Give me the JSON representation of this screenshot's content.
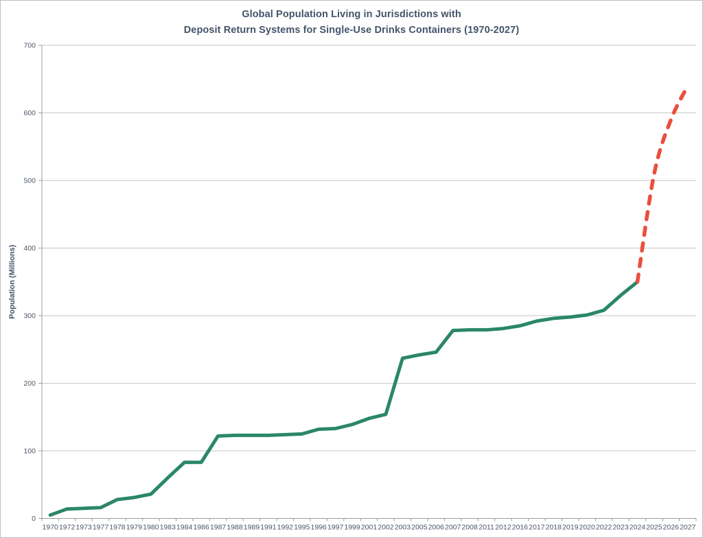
{
  "header": {
    "title_line1": "Global Population Living in Jurisdictions with",
    "title_line2": "Deposit Return Systems for Single-Use Drinks Containers (1970-2027)"
  },
  "colors": {
    "title": "#44546A",
    "axis_line": "#9B9B9B",
    "gridline": "#C6C6C6",
    "tick_label": "#4A5568",
    "axis_title": "#44546A",
    "series_actual": "#2A8767",
    "series_projected": "#EA4F3C",
    "frame_border": "#B9C0C9"
  },
  "chart_data": {
    "type": "line",
    "title": "Global Population Living in Jurisdictions with Deposit Return Systems for Single-Use Drinks Containers (1970-2027)",
    "xlabel": "",
    "ylabel": "Population (Millions)",
    "ylim": [
      0,
      700
    ],
    "ytick_step": 100,
    "grid": true,
    "legend": "none",
    "categories": [
      "1970",
      "1972",
      "1973",
      "1977",
      "1978",
      "1979",
      "1980",
      "1983",
      "1984",
      "1986",
      "1987",
      "1988",
      "1989",
      "1991",
      "1992",
      "1995",
      "1996",
      "1997",
      "1999",
      "2001",
      "2002",
      "2003",
      "2005",
      "2006",
      "2007",
      "2008",
      "2011",
      "2012",
      "2016",
      "2017",
      "2018",
      "2019",
      "2020",
      "2022",
      "2023",
      "2024",
      "2025",
      "2026",
      "2027"
    ],
    "series": [
      {
        "name": "population-covered-actual",
        "style": "solid",
        "smooth": false,
        "color": "#2A8767",
        "stroke_width": 5,
        "x": [
          "1970",
          "1972",
          "1973",
          "1977",
          "1978",
          "1979",
          "1980",
          "1983",
          "1984",
          "1986",
          "1987",
          "1988",
          "1989",
          "1991",
          "1992",
          "1995",
          "1996",
          "1997",
          "1999",
          "2001",
          "2002",
          "2003",
          "2005",
          "2006",
          "2007",
          "2008",
          "2011",
          "2012",
          "2016",
          "2017",
          "2018",
          "2019",
          "2020",
          "2022",
          "2023",
          "2024"
        ],
        "values": [
          5,
          14,
          15,
          16,
          28,
          31,
          36,
          60,
          83,
          83,
          122,
          123,
          123,
          123,
          124,
          125,
          132,
          133,
          139,
          148,
          154,
          237,
          242,
          246,
          278,
          279,
          279,
          281,
          285,
          292,
          296,
          298,
          301,
          308,
          330,
          350
        ]
      },
      {
        "name": "population-covered-projected",
        "style": "dashed",
        "smooth": true,
        "color": "#EA4F3C",
        "stroke_width": 5.5,
        "x": [
          "2024",
          "2025",
          "2026",
          "2027"
        ],
        "values": [
          350,
          510,
          590,
          640
        ]
      }
    ]
  }
}
